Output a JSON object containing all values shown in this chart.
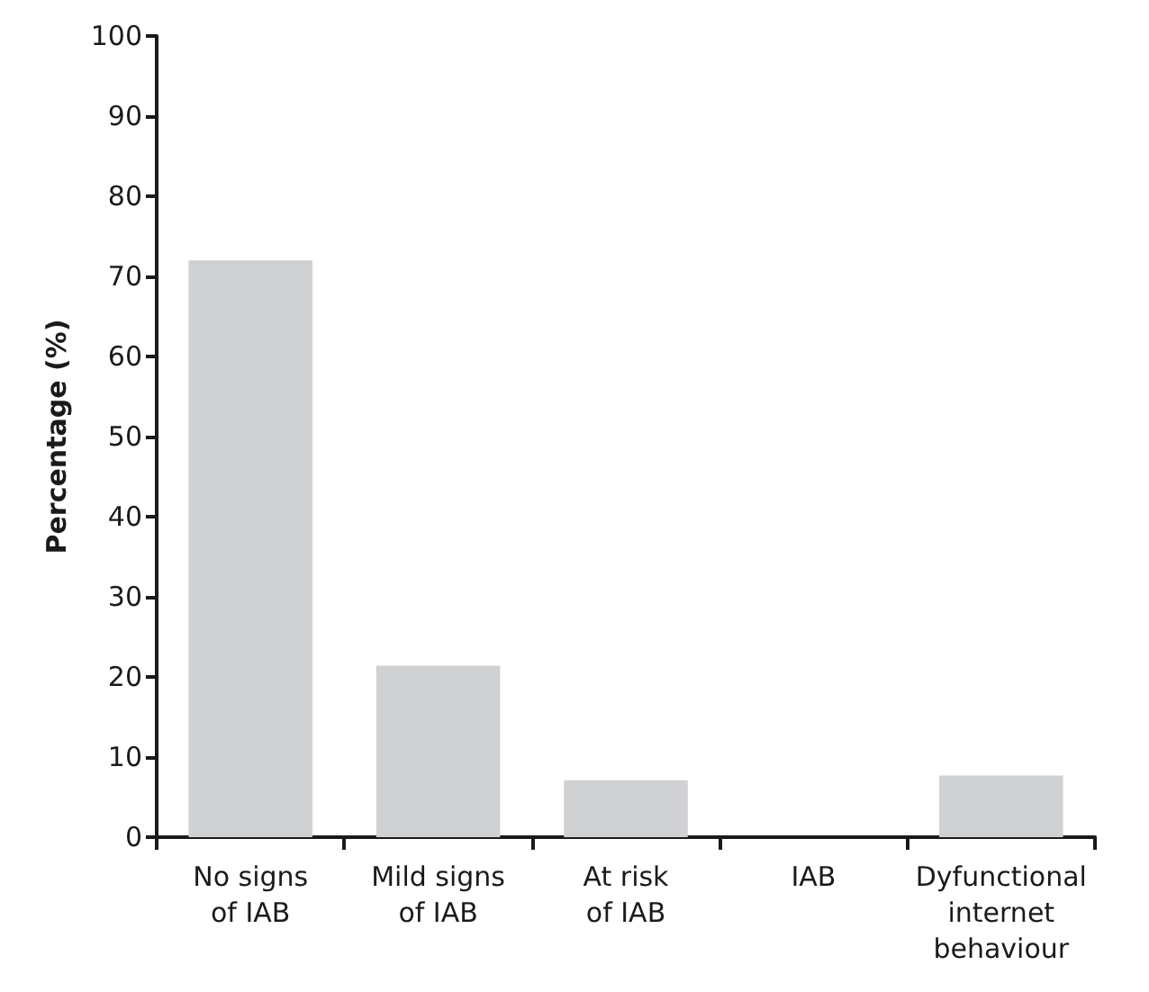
{
  "chart_data": {
    "type": "bar",
    "ylabel": "Percentage (%)",
    "categories": [
      "No signs\nof IAB",
      "Mild signs\nof IAB",
      "At risk\nof IAB",
      "IAB",
      "Dyfunctional\ninternet\nbehaviour"
    ],
    "values": [
      72,
      21.4,
      7.1,
      0,
      7.7
    ],
    "color": "#d0d1d3",
    "ylim": [
      0,
      100
    ],
    "yticks": [
      0,
      10,
      20,
      30,
      40,
      50,
      60,
      70,
      80,
      90,
      100
    ],
    "grid": false
  }
}
